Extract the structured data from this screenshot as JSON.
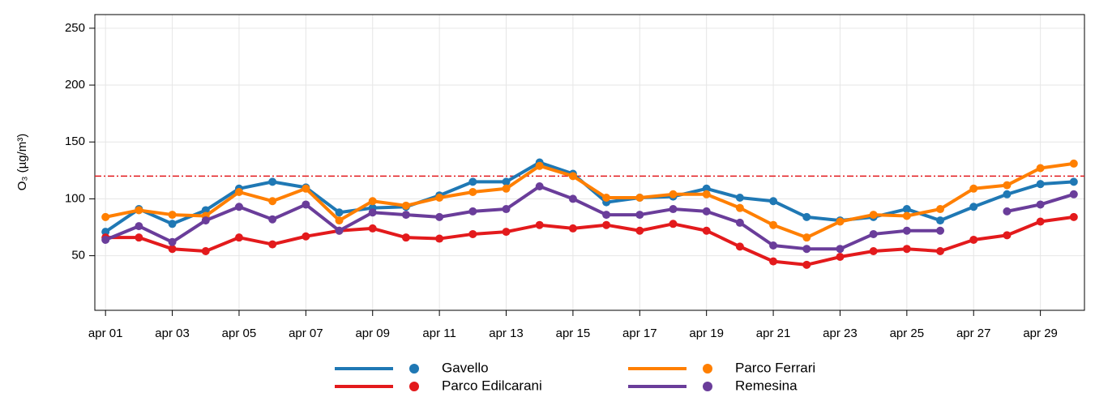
{
  "chart_data": {
    "type": "line",
    "ylabel": "O₃ (µg/m³)",
    "categories": [
      "apr 01",
      null,
      "apr 03",
      null,
      "apr 05",
      null,
      "apr 07",
      null,
      "apr 09",
      null,
      "apr 11",
      null,
      "apr 13",
      null,
      "apr 15",
      null,
      "apr 17",
      null,
      "apr 19",
      null,
      "apr 21",
      null,
      "apr 23",
      null,
      "apr 25",
      null,
      "apr 27",
      null,
      "apr 29",
      null
    ],
    "series": [
      {
        "name": "Gavello",
        "color": "#1f78b4",
        "values": [
          71,
          91,
          78,
          90,
          109,
          115,
          110,
          88,
          92,
          93,
          103,
          115,
          115,
          132,
          122,
          97,
          101,
          102,
          109,
          101,
          98,
          84,
          81,
          84,
          91,
          81,
          93,
          104,
          113,
          115
        ]
      },
      {
        "name": "Parco Edilcarani",
        "color": "#e31a1c",
        "values": [
          66,
          66,
          56,
          54,
          66,
          60,
          67,
          72,
          74,
          66,
          65,
          69,
          71,
          77,
          74,
          77,
          72,
          78,
          72,
          58,
          45,
          42,
          49,
          54,
          56,
          54,
          64,
          68,
          80,
          84
        ]
      },
      {
        "name": "Parco Ferrari",
        "color": "#ff7f00",
        "values": [
          84,
          90,
          86,
          85,
          106,
          98,
          109,
          81,
          98,
          94,
          101,
          106,
          109,
          129,
          120,
          101,
          101,
          104,
          104,
          92,
          77,
          66,
          80,
          86,
          85,
          91,
          109,
          112,
          127,
          131
        ]
      },
      {
        "name": "Remesina",
        "color": "#6a3d9a",
        "values": [
          64,
          76,
          62,
          81,
          93,
          82,
          95,
          72,
          88,
          86,
          84,
          89,
          91,
          111,
          100,
          86,
          86,
          91,
          89,
          79,
          59,
          56,
          56,
          69,
          72,
          72,
          null,
          89,
          95,
          104
        ]
      }
    ],
    "threshold": {
      "value": 120,
      "color": "#e31a1c"
    },
    "ylim": [
      2,
      262
    ],
    "yticks": [
      50,
      100,
      150,
      200,
      250
    ],
    "grid": true
  }
}
